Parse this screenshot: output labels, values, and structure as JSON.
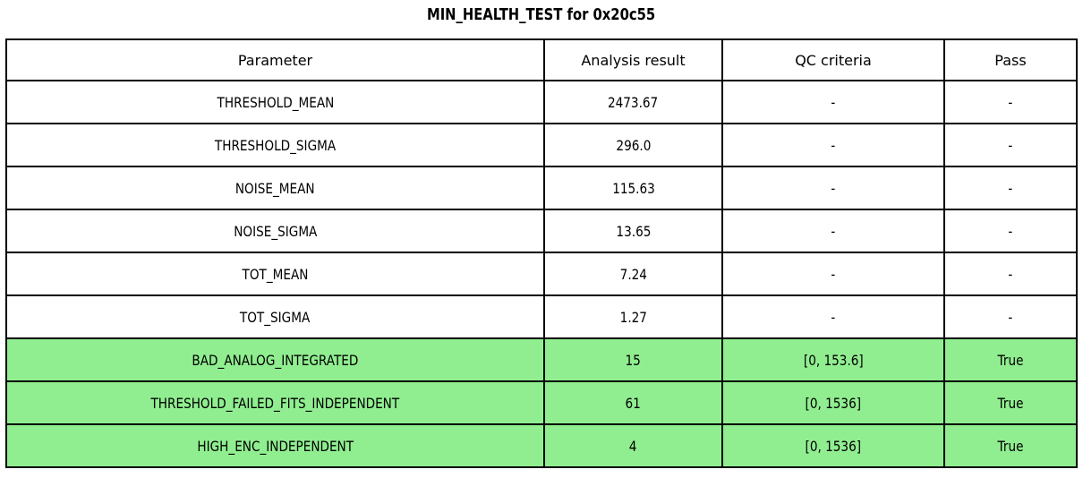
{
  "title": "MIN_HEALTH_TEST for 0x20c55",
  "table": {
    "columns": [
      "Parameter",
      "Analysis result",
      "QC criteria",
      "Pass"
    ],
    "rows": [
      {
        "cells": [
          "THRESHOLD_MEAN",
          "2473.67",
          "-",
          "-"
        ],
        "highlight": false
      },
      {
        "cells": [
          "THRESHOLD_SIGMA",
          "296.0",
          "-",
          "-"
        ],
        "highlight": false
      },
      {
        "cells": [
          "NOISE_MEAN",
          "115.63",
          "-",
          "-"
        ],
        "highlight": false
      },
      {
        "cells": [
          "NOISE_SIGMA",
          "13.65",
          "-",
          "-"
        ],
        "highlight": false
      },
      {
        "cells": [
          "TOT_MEAN",
          "7.24",
          "-",
          "-"
        ],
        "highlight": false
      },
      {
        "cells": [
          "TOT_SIGMA",
          "1.27",
          "-",
          "-"
        ],
        "highlight": false
      },
      {
        "cells": [
          "BAD_ANALOG_INTEGRATED",
          "15",
          "[0, 153.6]",
          "True"
        ],
        "highlight": true
      },
      {
        "cells": [
          "THRESHOLD_FAILED_FITS_INDEPENDENT",
          "61",
          "[0, 1536]",
          "True"
        ],
        "highlight": true
      },
      {
        "cells": [
          "HIGH_ENC_INDEPENDENT",
          "4",
          "[0, 1536]",
          "True"
        ],
        "highlight": true
      }
    ]
  },
  "colors": {
    "pass_green": "#90EE90",
    "border": "#000000",
    "text": "#000000",
    "background": "#ffffff"
  }
}
